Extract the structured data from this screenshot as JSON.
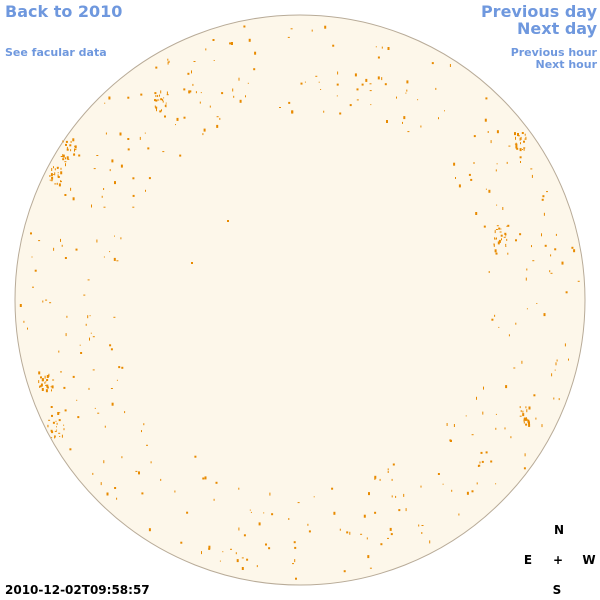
{
  "navigation": {
    "back": "Back to 2010",
    "facular": "See facular data",
    "previous_day": "Previous day",
    "next_day": "Next day",
    "previous_hour": "Previous hour",
    "next_hour": "Next hour"
  },
  "compass": {
    "north": "N",
    "east": "E",
    "center": "+",
    "west": "W",
    "south": "S"
  },
  "timestamp": "2010-12-02T09:58:57"
}
